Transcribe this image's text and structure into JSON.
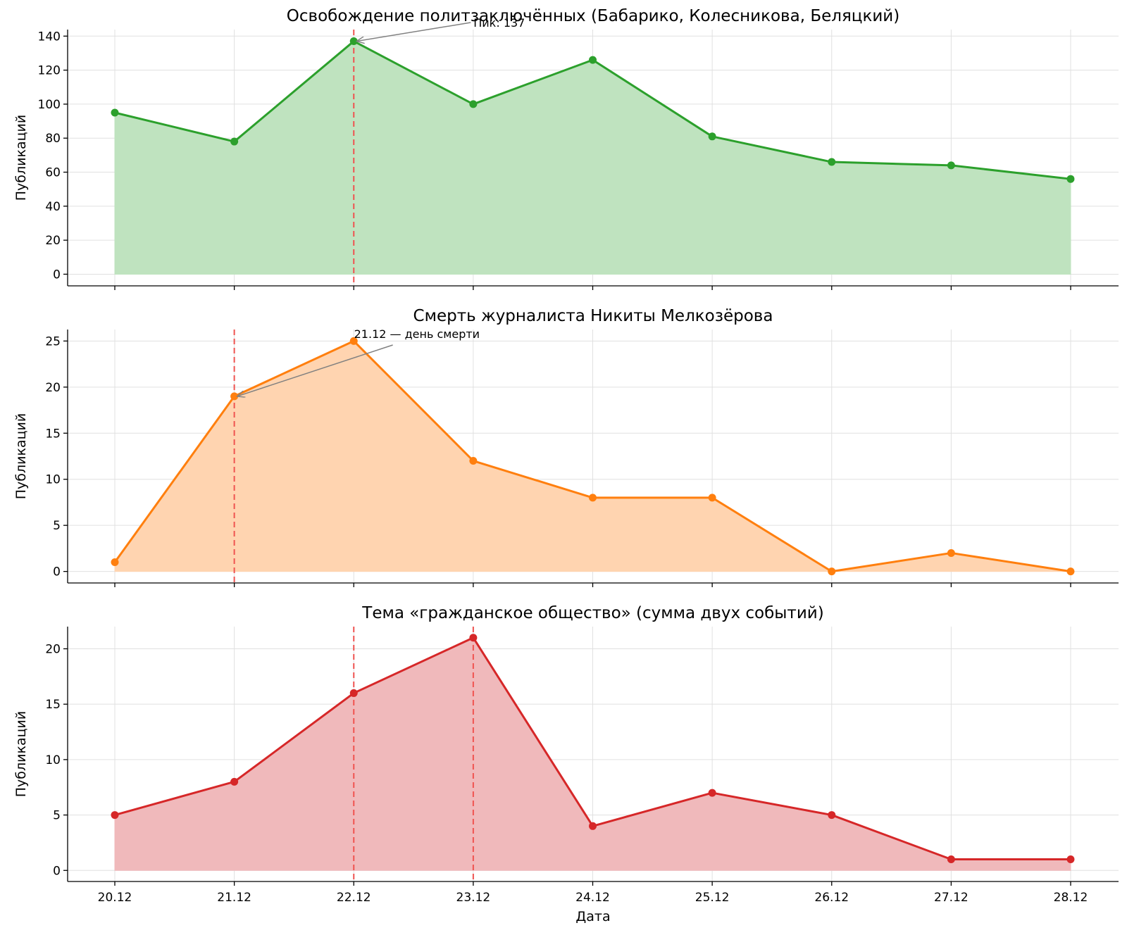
{
  "chart_data": [
    {
      "type": "area",
      "title": "Освобождение политзаключённых (Бабарико, Колесникова, Беляцкий)",
      "ylabel": "Публикаций",
      "xlabel": "",
      "categories": [
        "20.12",
        "21.12",
        "22.12",
        "23.12",
        "24.12",
        "25.12",
        "26.12",
        "27.12",
        "28.12"
      ],
      "values": [
        95,
        78,
        137,
        100,
        126,
        81,
        66,
        64,
        56
      ],
      "ylim": [
        -6.85,
        143.85
      ],
      "yticks": [
        0,
        20,
        40,
        60,
        80,
        100,
        120,
        140
      ],
      "grid": true,
      "color": "#2ca02c",
      "fill_color": "#bfe3bf",
      "vlines": [
        "22.12"
      ],
      "annotations": [
        {
          "text": "Пик: 137",
          "x": "22.12",
          "y": 137
        }
      ],
      "show_xticklabels": false
    },
    {
      "type": "area",
      "title": "Смерть журналиста Никиты Мелкозёрова",
      "ylabel": "Публикаций",
      "xlabel": "",
      "categories": [
        "20.12",
        "21.12",
        "22.12",
        "23.12",
        "24.12",
        "25.12",
        "26.12",
        "27.12",
        "28.12"
      ],
      "values": [
        1,
        19,
        25,
        12,
        8,
        8,
        0,
        2,
        0
      ],
      "ylim": [
        -1.25,
        26.25
      ],
      "yticks": [
        0,
        5,
        10,
        15,
        20,
        25
      ],
      "grid": true,
      "color": "#ff7f0e",
      "fill_color": "#ffd4b0",
      "vlines": [
        "21.12"
      ],
      "annotations": [
        {
          "text": "21.12 — день смерти",
          "x": "21.12",
          "y": 19
        }
      ],
      "show_xticklabels": false
    },
    {
      "type": "area",
      "title": "Тема «гражданское общество» (сумма двух событий)",
      "ylabel": "Публикаций",
      "xlabel": "Дата",
      "categories": [
        "20.12",
        "21.12",
        "22.12",
        "23.12",
        "24.12",
        "25.12",
        "26.12",
        "27.12",
        "28.12"
      ],
      "values": [
        5,
        8,
        16,
        21,
        4,
        7,
        5,
        1,
        1
      ],
      "ylim": [
        -1.0,
        22.0
      ],
      "yticks": [
        0,
        5,
        10,
        15,
        20
      ],
      "grid": true,
      "color": "#d62728",
      "fill_color": "#f0b9bb",
      "vlines": [
        "22.12",
        "23.12"
      ],
      "annotations": [],
      "show_xticklabels": true
    }
  ],
  "vline_color": "#ef5350",
  "annotation_arrow_color": "#808080"
}
